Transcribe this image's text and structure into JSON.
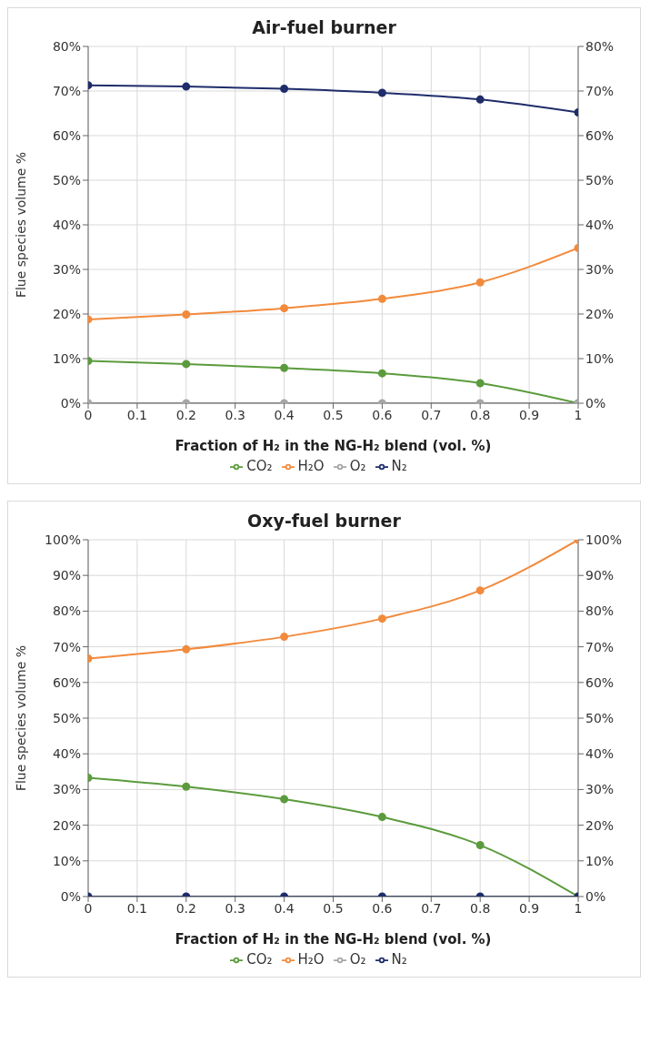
{
  "chart_data": [
    {
      "type": "line",
      "title": "Air-fuel burner",
      "xlabel": "Fraction of H₂ in the NG-H₂ blend (vol. %)",
      "ylabel": "Flue species volume %",
      "x": [
        0,
        0.2,
        0.4,
        0.6,
        0.8,
        1
      ],
      "series": [
        {
          "name": "CO₂",
          "color": "#5b9b3d",
          "values": [
            9.5,
            8.8,
            7.9,
            6.7,
            4.5,
            0
          ]
        },
        {
          "name": "H₂O",
          "color": "#f28a3c",
          "values": [
            18.8,
            19.9,
            21.3,
            23.4,
            27.1,
            34.8
          ]
        },
        {
          "name": "O₂",
          "color": "#a6a6a6",
          "values": [
            0,
            0,
            0,
            0,
            0,
            0
          ]
        },
        {
          "name": "N₂",
          "color": "#1f2d6b",
          "values": [
            71.3,
            71.0,
            70.5,
            69.6,
            68.1,
            65.2
          ]
        }
      ],
      "xlim": [
        0,
        1
      ],
      "xticks": [
        0,
        0.1,
        0.2,
        0.3,
        0.4,
        0.5,
        0.6,
        0.7,
        0.8,
        0.9,
        1
      ],
      "ylim": [
        0,
        80
      ],
      "yticks": [
        {
          "value": 0,
          "label": "0%"
        },
        {
          "value": 10,
          "label": "10%"
        },
        {
          "value": 20,
          "label": "20%"
        },
        {
          "value": 30,
          "label": "30%"
        },
        {
          "value": 40,
          "label": "40%"
        },
        {
          "value": 50,
          "label": "50%"
        },
        {
          "value": 60,
          "label": "60%"
        },
        {
          "value": 70,
          "label": "70%"
        },
        {
          "value": 80,
          "label": "80%"
        }
      ],
      "y2lim": [
        0,
        80
      ],
      "y2ticks": [
        {
          "value": 0,
          "label": "0%"
        },
        {
          "value": 10,
          "label": "10%"
        },
        {
          "value": 20,
          "label": "20%"
        },
        {
          "value": 30,
          "label": "30%"
        },
        {
          "value": 40,
          "label": "40%"
        },
        {
          "value": 50,
          "label": "50%"
        },
        {
          "value": 60,
          "label": "60%"
        },
        {
          "value": 70,
          "label": "70%"
        },
        {
          "value": 80,
          "label": "80%"
        }
      ],
      "grid": true,
      "legend": "bottom",
      "marker": "circle",
      "line_style": "solid"
    },
    {
      "type": "line",
      "title": "Oxy-fuel burner",
      "xlabel": "Fraction of H₂ in the NG-H₂ blend (vol. %)",
      "ylabel": "Flue species volume %",
      "x": [
        0,
        0.2,
        0.4,
        0.6,
        0.8,
        1
      ],
      "series": [
        {
          "name": "CO₂",
          "color": "#5b9b3d",
          "values": [
            33.3,
            30.8,
            27.3,
            22.3,
            14.4,
            0
          ]
        },
        {
          "name": "H₂O",
          "color": "#f28a3c",
          "values": [
            66.7,
            69.3,
            72.8,
            77.9,
            85.8,
            100
          ]
        },
        {
          "name": "O₂",
          "color": "#a6a6a6",
          "values": [
            null,
            null,
            null,
            null,
            null,
            null
          ]
        },
        {
          "name": "N₂",
          "color": "#1f2d6b",
          "values": [
            0,
            0,
            0,
            0,
            0,
            0
          ]
        }
      ],
      "xlim": [
        0,
        1
      ],
      "xticks": [
        0,
        0.1,
        0.2,
        0.3,
        0.4,
        0.5,
        0.6,
        0.7,
        0.8,
        0.9,
        1
      ],
      "ylim": [
        0,
        100
      ],
      "yticks": [
        {
          "value": 0,
          "label": "0%"
        },
        {
          "value": 10,
          "label": "10%"
        },
        {
          "value": 20,
          "label": "20%"
        },
        {
          "value": 30,
          "label": "30%"
        },
        {
          "value": 40,
          "label": "40%"
        },
        {
          "value": 50,
          "label": "50%"
        },
        {
          "value": 60,
          "label": "60%"
        },
        {
          "value": 70,
          "label": "70%"
        },
        {
          "value": 80,
          "label": "80%"
        },
        {
          "value": 90,
          "label": "90%"
        },
        {
          "value": 100,
          "label": "100%"
        }
      ],
      "y2lim": [
        0,
        100
      ],
      "y2ticks": [
        {
          "value": 0,
          "label": "0%"
        },
        {
          "value": 10,
          "label": "10%"
        },
        {
          "value": 20,
          "label": "20%"
        },
        {
          "value": 30,
          "label": "30%"
        },
        {
          "value": 40,
          "label": "40%"
        },
        {
          "value": 50,
          "label": "50%"
        },
        {
          "value": 60,
          "label": "60%"
        },
        {
          "value": 70,
          "label": "70%"
        },
        {
          "value": 80,
          "label": "80%"
        },
        {
          "value": 90,
          "label": "90%"
        },
        {
          "value": 100,
          "label": "100%"
        }
      ],
      "grid": true,
      "legend": "bottom",
      "marker": "circle",
      "line_style": "solid"
    }
  ]
}
